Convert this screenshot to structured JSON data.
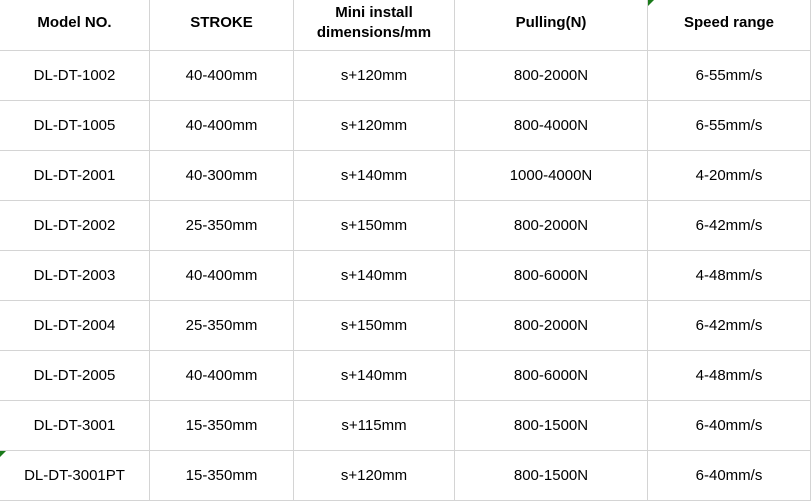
{
  "headers": [
    "Model NO.",
    "STROKE",
    "Mini install dimensions/mm",
    "Pulling(N)",
    "Speed range"
  ],
  "rows": [
    [
      "DL-DT-1002",
      "40-400mm",
      "s+120mm",
      "800-2000N",
      "6-55mm/s"
    ],
    [
      "DL-DT-1005",
      "40-400mm",
      "s+120mm",
      "800-4000N",
      "6-55mm/s"
    ],
    [
      "DL-DT-2001",
      "40-300mm",
      "s+140mm",
      "1000-4000N",
      "4-20mm/s"
    ],
    [
      "DL-DT-2002",
      "25-350mm",
      "s+150mm",
      "800-2000N",
      "6-42mm/s"
    ],
    [
      "DL-DT-2003",
      "40-400mm",
      "s+140mm",
      "800-6000N",
      "4-48mm/s"
    ],
    [
      "DL-DT-2004",
      "25-350mm",
      "s+150mm",
      "800-2000N",
      "6-42mm/s"
    ],
    [
      "DL-DT-2005",
      "40-400mm",
      "s+140mm",
      "800-6000N",
      "4-48mm/s"
    ],
    [
      "DL-DT-3001",
      "15-350mm",
      "s+115mm",
      "800-1500N",
      "6-40mm/s"
    ],
    [
      "DL-DT-3001PT",
      "15-350mm",
      "s+120mm",
      "800-1500N",
      "6-40mm/s"
    ]
  ],
  "colors": {
    "grid": "#d4d4d4",
    "comment_marker": "#1a7a1a"
  }
}
